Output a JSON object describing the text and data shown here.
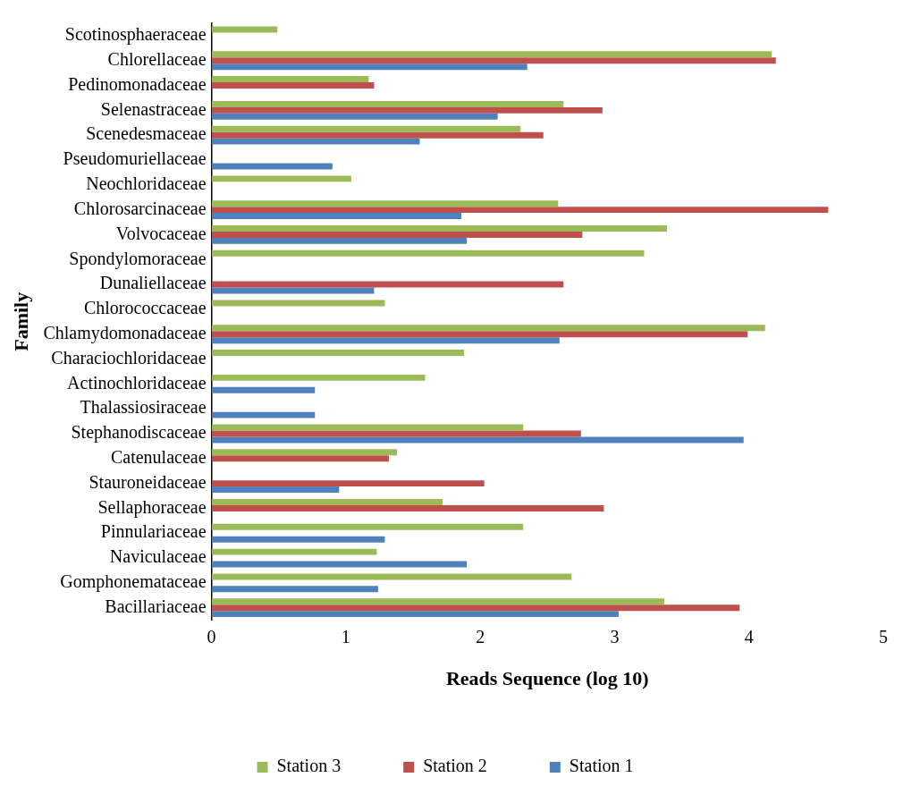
{
  "chart_data": {
    "type": "bar",
    "orientation": "horizontal",
    "xlabel": "Reads Sequence (log 10)",
    "ylabel": "Family",
    "categories": [
      "Scotinosphaeraceae",
      "Chlorellaceae",
      "Pedinomonadaceae",
      "Selenastraceae",
      "Scenedesmaceae",
      "Pseudomuriellaceae",
      "Neochloridaceae",
      "Chlorosarcinaceae",
      "Volvocaceae",
      "Spondylomoraceae",
      "Dunaliellaceae",
      "Chlorococcaceae",
      "Chlamydomonadaceae",
      "Characiochloridaceae",
      "Actinochloridaceae",
      "Thalassiosiraceae",
      "Stephanodiscaceae",
      "Catenulaceae",
      "Stauroneidaceae",
      "Sellaphoraceae",
      "Pinnulariaceae",
      "Naviculaceae",
      "Gomphonemataceae",
      "Bacillariaceae"
    ],
    "series": [
      {
        "name": "Station 3",
        "color": "#9bbb59",
        "values": [
          0.49,
          4.17,
          1.17,
          2.62,
          2.3,
          null,
          1.04,
          2.58,
          3.39,
          3.22,
          null,
          1.29,
          4.12,
          1.88,
          1.59,
          null,
          2.32,
          1.38,
          null,
          1.72,
          2.32,
          1.23,
          2.68,
          3.37
        ]
      },
      {
        "name": "Station 2",
        "color": "#c0504d",
        "values": [
          null,
          4.2,
          1.21,
          2.91,
          2.47,
          null,
          null,
          4.59,
          2.76,
          null,
          2.62,
          null,
          3.99,
          null,
          null,
          null,
          2.75,
          1.32,
          2.03,
          2.92,
          null,
          null,
          null,
          3.93
        ]
      },
      {
        "name": "Station 1",
        "color": "#4f81bd",
        "values": [
          null,
          2.35,
          null,
          2.13,
          1.55,
          0.9,
          null,
          1.86,
          1.9,
          null,
          1.21,
          null,
          2.59,
          null,
          0.77,
          0.77,
          3.96,
          null,
          0.95,
          null,
          1.29,
          1.9,
          1.24,
          3.03
        ]
      }
    ],
    "xlim": [
      0,
      5
    ],
    "xticks": [
      0,
      1,
      2,
      3,
      4,
      5
    ],
    "grid": false,
    "legend": "bottom"
  }
}
